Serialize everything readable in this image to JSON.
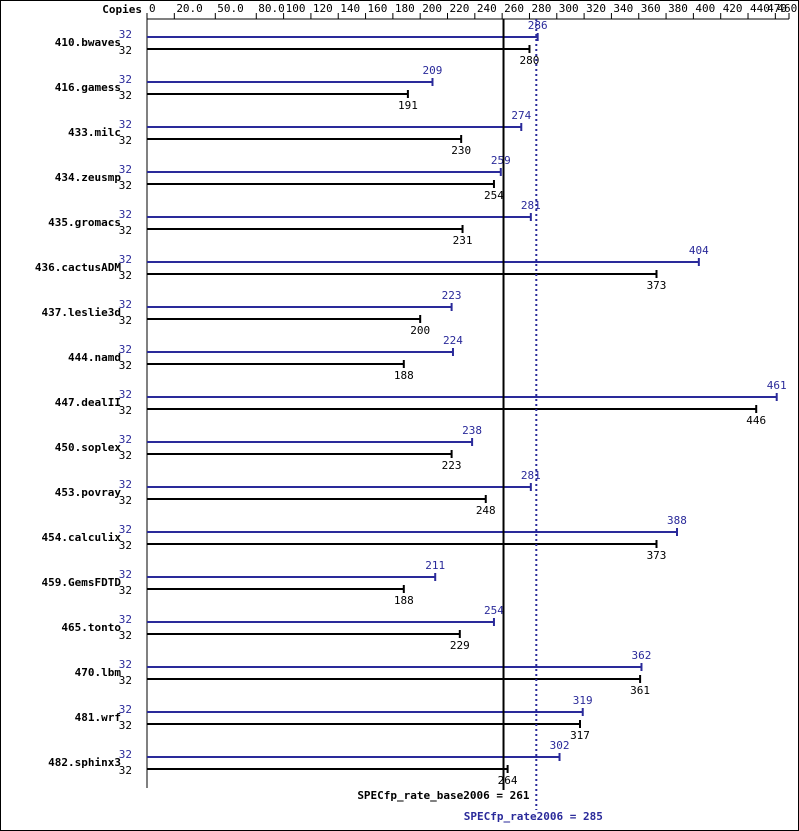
{
  "chart_data": {
    "type": "bar",
    "axis_label": "Copies",
    "categories": [
      "410.bwaves",
      "416.gamess",
      "433.milc",
      "434.zeusmp",
      "435.gromacs",
      "436.cactusADM",
      "437.leslie3d",
      "444.namd",
      "447.dealII",
      "450.soplex",
      "453.povray",
      "454.calculix",
      "459.GemsFDTD",
      "465.tonto",
      "470.lbm",
      "481.wrf",
      "482.sphinx3"
    ],
    "series": [
      {
        "color": "#2a2a9a",
        "copies": [
          32,
          32,
          32,
          32,
          32,
          32,
          32,
          32,
          32,
          32,
          32,
          32,
          32,
          32,
          32,
          32,
          32
        ],
        "values": [
          286,
          209,
          274,
          259,
          281,
          404,
          223,
          224,
          461,
          238,
          281,
          388,
          211,
          254,
          362,
          319,
          302
        ]
      },
      {
        "color": "#000000",
        "copies": [
          32,
          32,
          32,
          32,
          32,
          32,
          32,
          32,
          32,
          32,
          32,
          32,
          32,
          32,
          32,
          32,
          32
        ],
        "values": [
          280,
          191,
          230,
          254,
          231,
          373,
          200,
          188,
          446,
          223,
          248,
          373,
          188,
          229,
          361,
          317,
          264
        ]
      }
    ],
    "xlim": [
      0,
      470
    ],
    "xticks": [
      0,
      {
        "value": 20,
        "label": "20.0"
      },
      {
        "value": 50,
        "label": "50.0"
      },
      {
        "value": 80,
        "label": "80.0"
      },
      100,
      120,
      140,
      160,
      180,
      200,
      220,
      240,
      260,
      280,
      300,
      320,
      340,
      360,
      380,
      400,
      420,
      440,
      460,
      470
    ],
    "reference_lines": [
      {
        "value": 261,
        "label": "SPECfp_rate_base2006 = 261",
        "color": "#000000",
        "dotted": false
      },
      {
        "value": 285,
        "label": "SPECfp_rate2006 = 285",
        "color": "#2a2a9a",
        "dotted": true
      }
    ]
  }
}
